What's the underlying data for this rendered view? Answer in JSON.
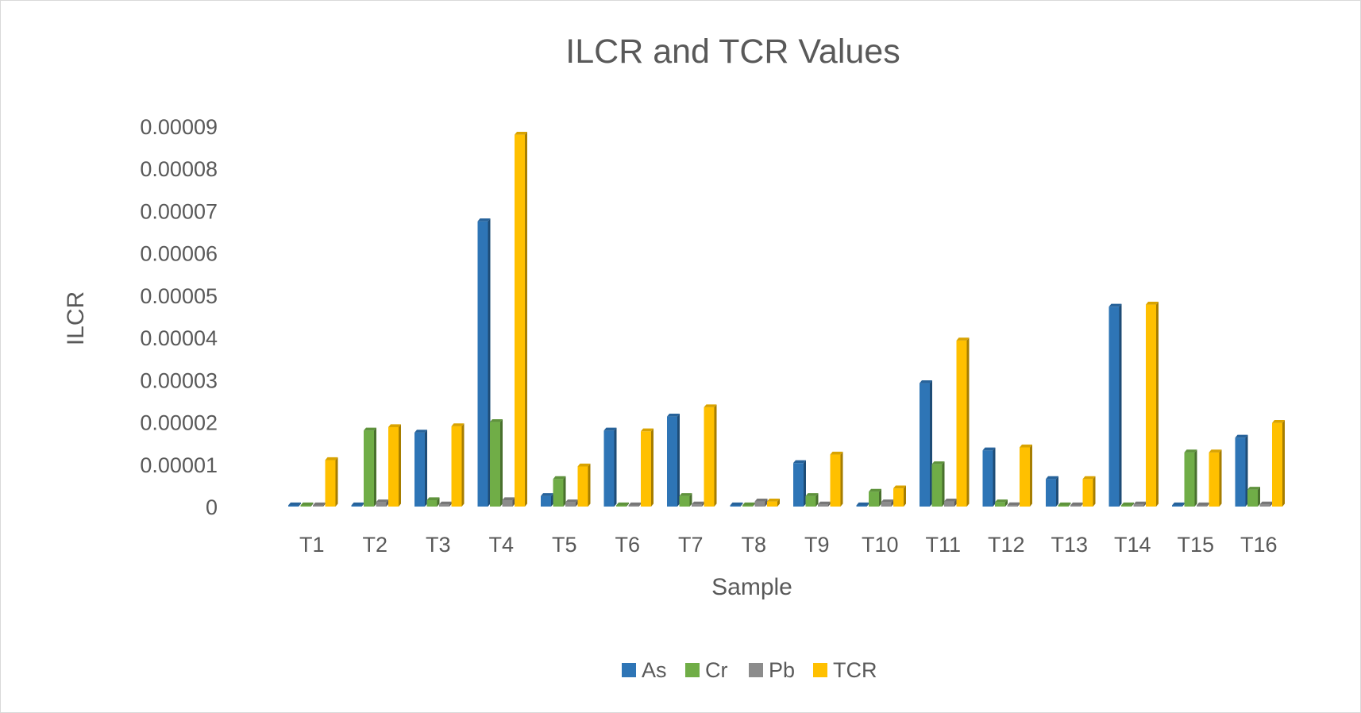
{
  "chart_data": {
    "type": "bar",
    "title": "ILCR and TCR Values",
    "xlabel": "Sample",
    "ylabel": "ILCR",
    "categories": [
      "T1",
      "T2",
      "T3",
      "T4",
      "T5",
      "T6",
      "T7",
      "T8",
      "T9",
      "T10",
      "T11",
      "T12",
      "T13",
      "T14",
      "T15",
      "T16"
    ],
    "y_ticks": [
      "0",
      "0.00001",
      "0.00002",
      "0.00003",
      "0.00004",
      "0.00005",
      "0.00006",
      "0.00007",
      "0.00008",
      "0.00009"
    ],
    "ylim": [
      0,
      9e-05
    ],
    "grid": false,
    "legend_position": "bottom",
    "series": [
      {
        "name": "As",
        "color": "#2e75b6",
        "values": [
          0,
          0,
          1.75e-05,
          6.75e-05,
          2.5e-06,
          1.8e-05,
          2.13e-05,
          0,
          1.03e-05,
          0,
          2.92e-05,
          1.33e-05,
          6.5e-06,
          4.73e-05,
          0,
          1.63e-05
        ]
      },
      {
        "name": "Cr",
        "color": "#70ad47",
        "values": [
          0,
          1.8e-05,
          1.5e-06,
          2e-05,
          6.5e-06,
          0,
          2.5e-06,
          0,
          2.5e-06,
          3.5e-06,
          1e-05,
          1e-06,
          0,
          0,
          1.28e-05,
          4e-06
        ]
      },
      {
        "name": "Pb",
        "color": "#8c8c8c",
        "values": [
          0,
          1e-06,
          5e-07,
          1.5e-06,
          1e-06,
          0,
          5e-07,
          1.2e-06,
          5e-07,
          1e-06,
          1.2e-06,
          3e-07,
          0,
          5e-07,
          0,
          5e-07
        ]
      },
      {
        "name": "TCR",
        "color": "#ffc000",
        "values": [
          1.1e-05,
          1.88e-05,
          1.9e-05,
          8.8e-05,
          9.5e-06,
          1.78e-05,
          2.35e-05,
          1.2e-06,
          1.23e-05,
          4.3e-06,
          3.93e-05,
          1.4e-05,
          6.5e-06,
          4.78e-05,
          1.28e-05,
          1.98e-05
        ]
      }
    ]
  }
}
